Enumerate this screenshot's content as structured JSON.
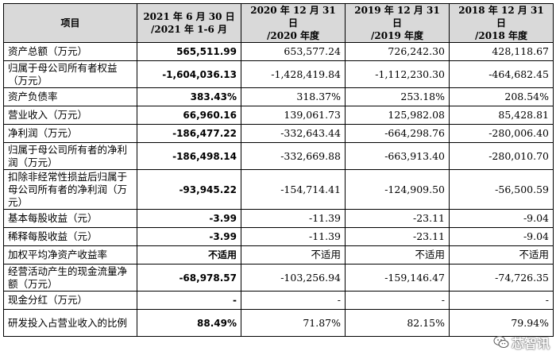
{
  "header": {
    "col0": "项目",
    "cols": [
      {
        "line1": "2021 年 6 月 30 日",
        "line2": "/2021 年 1-6 月"
      },
      {
        "line1": "2020 年 12 月 31 日",
        "line2": "/2020 年度"
      },
      {
        "line1": "2019 年 12 月 31 日",
        "line2": "/2019 年度"
      },
      {
        "line1": "2018 年 12 月 31 日",
        "line2": "/2018 年度"
      }
    ]
  },
  "rows": [
    {
      "label": "资产总额（万元）",
      "v": [
        "565,511.99",
        "653,577.24",
        "726,242.30",
        "428,118.67"
      ]
    },
    {
      "label": "归属于母公司所有者权益（万元）",
      "v": [
        "-1,604,036.13",
        "-1,428,419.84",
        "-1,112,230.30",
        "-464,682.45"
      ]
    },
    {
      "label": "资产负债率",
      "v": [
        "383.43%",
        "318.37%",
        "253.18%",
        "208.54%"
      ]
    },
    {
      "label": "营业收入（万元）",
      "v": [
        "66,960.16",
        "139,061.73",
        "125,982.08",
        "85,428.81"
      ]
    },
    {
      "label": "净利润（万元）",
      "v": [
        "-186,477.22",
        "-332,643.44",
        "-664,298.76",
        "-280,006.40"
      ]
    },
    {
      "label": "归属于母公司所有者的净利润（万元）",
      "v": [
        "-186,498.14",
        "-332,669.88",
        "-663,913.40",
        "-280,010.70"
      ]
    },
    {
      "label": "扣除非经常性损益后归属于母公司所有者的净利润（万元）",
      "v": [
        "-93,945.22",
        "-154,714.41",
        "-124,909.50",
        "-56,500.59"
      ]
    },
    {
      "label": "基本每股收益（元）",
      "v": [
        "-3.99",
        "-11.39",
        "-23.11",
        "-9.04"
      ]
    },
    {
      "label": "稀释每股收益（元）",
      "v": [
        "-3.99",
        "-11.39",
        "-23.11",
        "-9.04"
      ]
    },
    {
      "label": "加权平均净资产收益率",
      "v": [
        "不适用",
        "不适用",
        "不适用",
        "不适用"
      ]
    },
    {
      "label": "经营活动产生的现金流量净额（万元）",
      "v": [
        "-68,978.57",
        "-103,256.94",
        "-159,146.47",
        "-74,726.35"
      ]
    },
    {
      "label": "现金分红（万元）",
      "v": [
        "-",
        "-",
        "-",
        "-"
      ]
    },
    {
      "label": "研发投入占营业收入的比例",
      "v": [
        "88.49%",
        "71.87%",
        "82.15%",
        "79.94%"
      ]
    }
  ],
  "watermark": {
    "icon": "wechat-icon",
    "text": "芯智讯"
  }
}
